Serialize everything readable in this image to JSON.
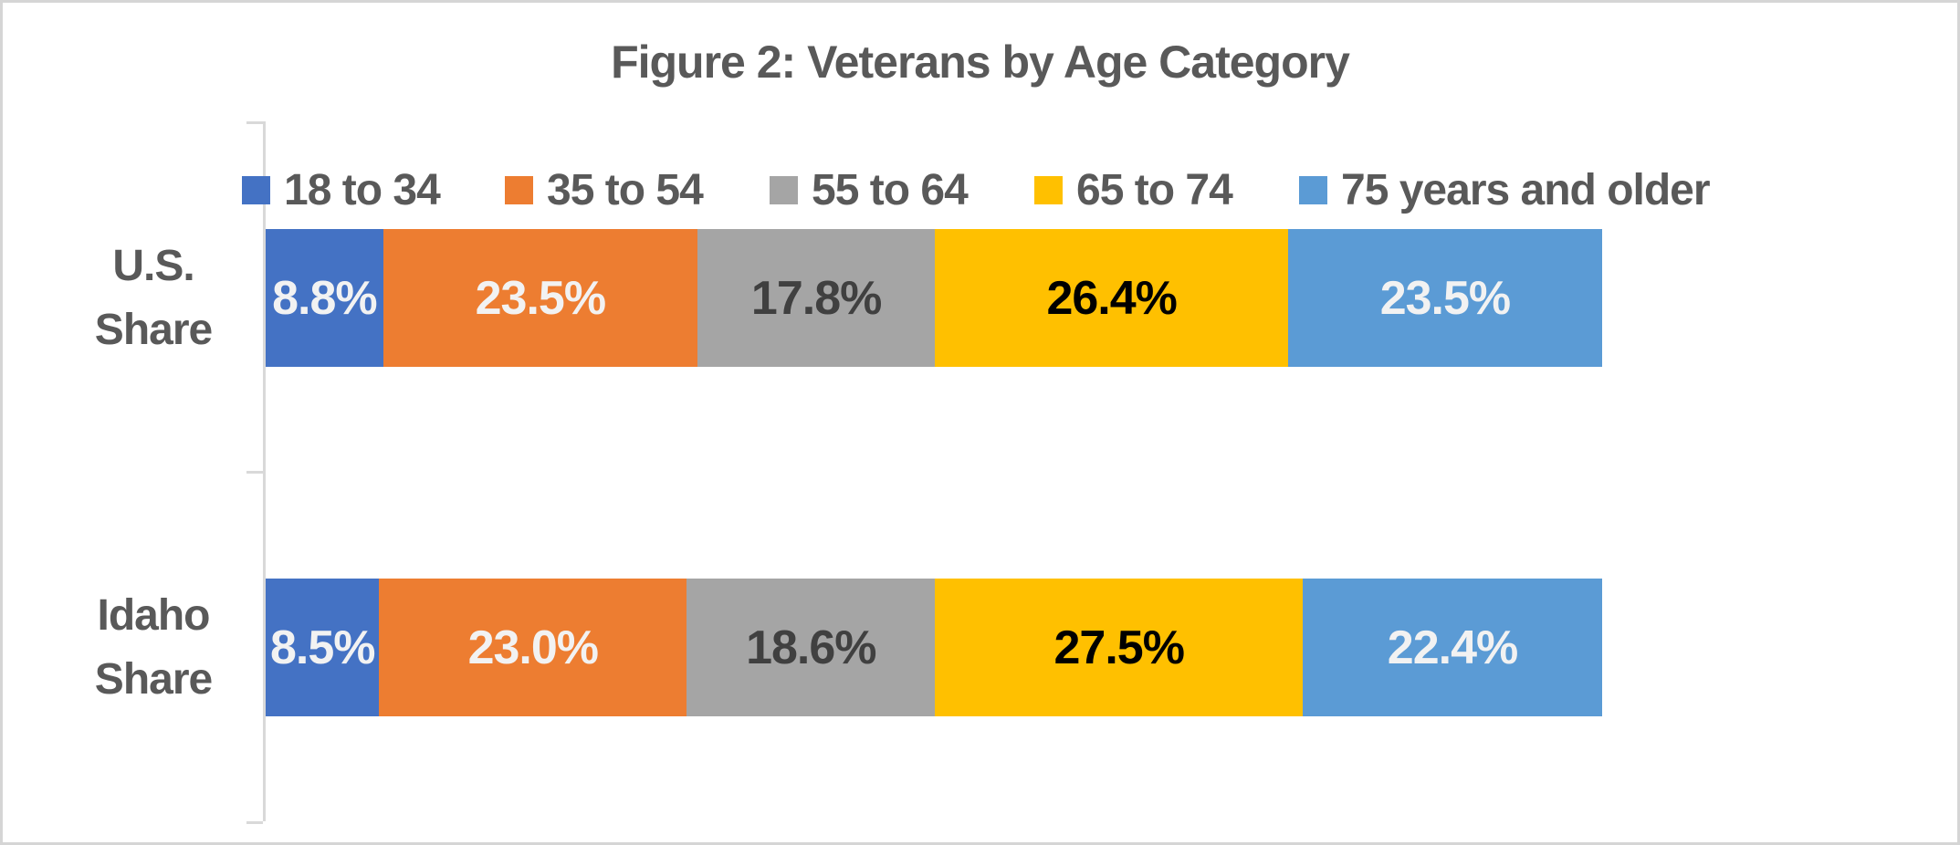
{
  "colors": {
    "axis_color": "#D9D9D9",
    "text_color": "#595959",
    "frame_border": "#D5D5D5",
    "bg": "#FFFFFF"
  },
  "chart_data": {
    "type": "bar",
    "variant": "horizontal-stacked-100",
    "title": "Figure 2: Veterans by Age Category",
    "categories": [
      "U.S. Share",
      "Idaho Share"
    ],
    "series": [
      {
        "name": "18 to 34",
        "color": "#4472C4",
        "label_color": "#F2F2F2",
        "values": [
          8.8,
          8.5
        ]
      },
      {
        "name": "35 to 54",
        "color": "#ED7D31",
        "label_color": "#F2F2F2",
        "values": [
          23.5,
          23.0
        ]
      },
      {
        "name": "55 to 64",
        "color": "#A5A5A5",
        "label_color": "#404040",
        "values": [
          17.8,
          18.6
        ]
      },
      {
        "name": "65 to 74",
        "color": "#FFC000",
        "label_color": "#000000",
        "values": [
          26.4,
          27.5
        ]
      },
      {
        "name": "75 years and older",
        "color": "#5B9BD5",
        "label_color": "#F2F2F2",
        "values": [
          23.5,
          22.4
        ]
      }
    ],
    "rows": [
      {
        "category": "U.S. Share",
        "labels": [
          "8.8%",
          "23.5%",
          "17.8%",
          "26.4%",
          "23.5%"
        ]
      },
      {
        "category": "Idaho Share",
        "labels": [
          "8.5%",
          "23.0%",
          "18.6%",
          "27.5%",
          "22.4%"
        ]
      }
    ],
    "value_format": "percent, 1 decimal",
    "xlim": [
      0,
      100
    ],
    "grid": false,
    "legend_position": "top",
    "axis": "category axis on left with ticks at category boundaries"
  }
}
